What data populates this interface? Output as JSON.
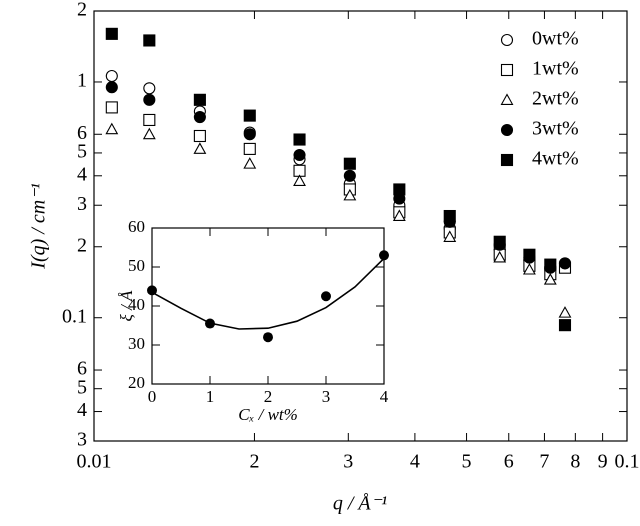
{
  "chart_data": [
    {
      "type": "scatter",
      "x_label": "q / Å⁻¹",
      "y_label": "I(q) / cm⁻¹",
      "x_log": true,
      "y_log": true,
      "legend": "top-right",
      "xlim": [
        0.01,
        0.1
      ],
      "xticks": [
        0.01,
        {
          "value": 0.02,
          "label": "2"
        },
        {
          "value": 0.03,
          "label": "3"
        },
        {
          "value": 0.04,
          "label": "4"
        },
        {
          "value": 0.05,
          "label": "5"
        },
        {
          "value": 0.06,
          "label": "6"
        },
        {
          "value": 0.07,
          "label": "7"
        },
        {
          "value": 0.08,
          "label": "8"
        },
        {
          "value": 0.09,
          "label": "9"
        },
        0.1
      ],
      "ylim": [
        0.03,
        2
      ],
      "yticks": [
        2,
        1,
        {
          "value": 0.6,
          "label": "6"
        },
        {
          "value": 0.5,
          "label": "5"
        },
        {
          "value": 0.4,
          "label": "4"
        },
        {
          "value": 0.3,
          "label": "3"
        },
        {
          "value": 0.2,
          "label": "2"
        },
        0.1,
        {
          "value": 0.06,
          "label": "6"
        },
        {
          "value": 0.05,
          "label": "5"
        },
        {
          "value": 0.04,
          "label": "4"
        },
        {
          "value": 0.03,
          "label": "3"
        }
      ],
      "x": [
        0.0108,
        0.0127,
        0.0158,
        0.0196,
        0.0243,
        0.0302,
        0.0374,
        0.0465,
        0.0577,
        0.0656,
        0.0718,
        0.0765
      ],
      "series": [
        {
          "name": "0wt%",
          "marker": "circle-open",
          "color": "#000000",
          "values": [
            1.06,
            0.94,
            0.75,
            0.61,
            0.47,
            0.37,
            0.3,
            0.24,
            0.195,
            0.176,
            0.163,
            0.17
          ]
        },
        {
          "name": "1wt%",
          "marker": "square-open",
          "color": "#000000",
          "values": [
            0.78,
            0.69,
            0.59,
            0.52,
            0.42,
            0.35,
            0.28,
            0.23,
            0.185,
            0.166,
            0.153,
            0.163
          ]
        },
        {
          "name": "2wt%",
          "marker": "triangle-open",
          "color": "#000000",
          "values": [
            0.63,
            0.6,
            0.52,
            0.45,
            0.38,
            0.33,
            0.27,
            0.22,
            0.18,
            0.16,
            0.145,
            0.105
          ]
        },
        {
          "name": "3wt%",
          "marker": "circle-filled",
          "color": "#000000",
          "values": [
            0.95,
            0.84,
            0.71,
            0.6,
            0.49,
            0.4,
            0.32,
            0.255,
            0.204,
            0.18,
            0.163,
            0.17
          ]
        },
        {
          "name": "4wt%",
          "marker": "square-filled",
          "color": "#000000",
          "values": [
            1.6,
            1.5,
            0.84,
            0.72,
            0.57,
            0.45,
            0.35,
            0.27,
            0.21,
            0.185,
            0.168,
            0.093
          ]
        }
      ]
    },
    {
      "type": "scatter",
      "x_label": "Cₓ / wt%",
      "y_label": "ξ / Å",
      "xlim": [
        0,
        4
      ],
      "xticks": [
        0,
        1,
        2,
        3,
        4
      ],
      "ylim": [
        20,
        60
      ],
      "yticks": [
        20,
        30,
        40,
        50,
        60
      ],
      "x": [
        0,
        1,
        2,
        3,
        4
      ],
      "values": [
        44,
        35.5,
        32,
        42.5,
        53
      ],
      "color": "#000000",
      "curve": {
        "x": [
          0,
          0.5,
          1,
          1.5,
          2,
          2.5,
          3,
          3.5,
          4
        ],
        "values": [
          43.5,
          39.4,
          35.6,
          34.1,
          34.3,
          36.1,
          39.6,
          44.9,
          52.2
        ]
      }
    }
  ]
}
